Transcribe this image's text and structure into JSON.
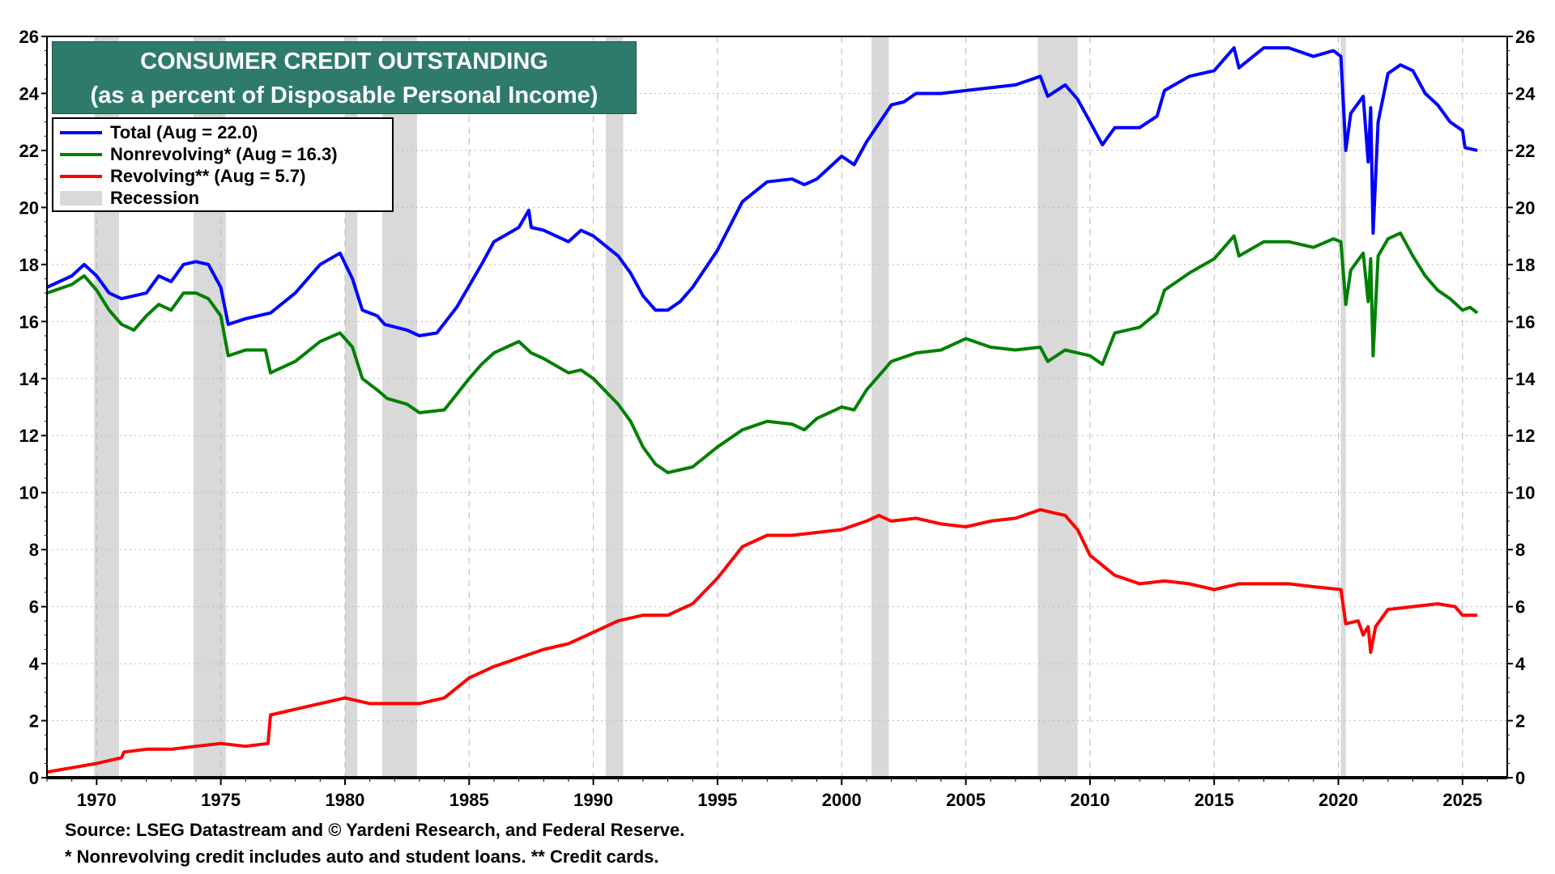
{
  "title_line1": "CONSUMER CREDIT OUTSTANDING",
  "title_line2": "(as a percent of Disposable Personal Income)",
  "legend": [
    {
      "label": "Total  (Aug = 22.0)",
      "color": "#0000ff"
    },
    {
      "label": "Nonrevolving* (Aug = 16.3)",
      "color": "#008000"
    },
    {
      "label": "Revolving** (Aug = 5.7)",
      "color": "#ff0000"
    },
    {
      "label": "Recession",
      "color": "#d9d9d9"
    }
  ],
  "footer": {
    "source": "Source: LSEG Datastream and © Yardeni Research, and Federal Reserve.",
    "note": "* Nonrevolving credit includes auto and student loans. ** Credit cards."
  },
  "chart_data": {
    "type": "line",
    "title": "CONSUMER CREDIT OUTSTANDING (as a percent of Disposable Personal Income)",
    "xlim": [
      1968,
      2026.8
    ],
    "ylim": [
      0,
      26
    ],
    "x_ticks": [
      1970,
      1975,
      1980,
      1985,
      1990,
      1995,
      2000,
      2005,
      2010,
      2015,
      2020,
      2025
    ],
    "y_ticks": [
      0,
      2,
      4,
      6,
      8,
      10,
      12,
      14,
      16,
      18,
      20,
      22,
      24,
      26
    ],
    "grid": true,
    "legend_position": "top-left",
    "recessions": [
      [
        1969.9,
        1970.9
      ],
      [
        1973.9,
        1975.2
      ],
      [
        1980.0,
        1980.5
      ],
      [
        1981.5,
        1982.9
      ],
      [
        1990.5,
        1991.2
      ],
      [
        2001.2,
        2001.9
      ],
      [
        2007.9,
        2009.5
      ],
      [
        2020.1,
        2020.3
      ]
    ],
    "series": [
      {
        "name": "Total",
        "color": "#0000ff",
        "points": [
          [
            1968,
            17.2
          ],
          [
            1969,
            17.6
          ],
          [
            1969.5,
            18.0
          ],
          [
            1970,
            17.6
          ],
          [
            1970.5,
            17.0
          ],
          [
            1971,
            16.8
          ],
          [
            1972,
            17.0
          ],
          [
            1972.5,
            17.6
          ],
          [
            1973,
            17.4
          ],
          [
            1973.5,
            18.0
          ],
          [
            1974,
            18.1
          ],
          [
            1974.5,
            18.0
          ],
          [
            1975,
            17.2
          ],
          [
            1975.3,
            15.9
          ],
          [
            1976,
            16.1
          ],
          [
            1977,
            16.3
          ],
          [
            1978,
            17.0
          ],
          [
            1979,
            18.0
          ],
          [
            1979.8,
            18.4
          ],
          [
            1980.3,
            17.5
          ],
          [
            1980.7,
            16.4
          ],
          [
            1981.3,
            16.2
          ],
          [
            1981.6,
            15.9
          ],
          [
            1982.5,
            15.7
          ],
          [
            1983,
            15.5
          ],
          [
            1983.7,
            15.6
          ],
          [
            1984.5,
            16.5
          ],
          [
            1985.5,
            18.0
          ],
          [
            1986,
            18.8
          ],
          [
            1987,
            19.3
          ],
          [
            1987.4,
            19.9
          ],
          [
            1987.5,
            19.3
          ],
          [
            1988,
            19.2
          ],
          [
            1989,
            18.8
          ],
          [
            1989.5,
            19.2
          ],
          [
            1990,
            19.0
          ],
          [
            1991,
            18.3
          ],
          [
            1991.5,
            17.7
          ],
          [
            1992,
            16.9
          ],
          [
            1992.5,
            16.4
          ],
          [
            1993,
            16.4
          ],
          [
            1993.5,
            16.7
          ],
          [
            1994,
            17.2
          ],
          [
            1995,
            18.5
          ],
          [
            1996,
            20.2
          ],
          [
            1997,
            20.9
          ],
          [
            1998,
            21.0
          ],
          [
            1998.5,
            20.8
          ],
          [
            1999,
            21.0
          ],
          [
            2000,
            21.8
          ],
          [
            2000.5,
            21.5
          ],
          [
            2001,
            22.3
          ],
          [
            2002,
            23.6
          ],
          [
            2002.5,
            23.7
          ],
          [
            2003,
            24.0
          ],
          [
            2004,
            24.0
          ],
          [
            2005,
            24.1
          ],
          [
            2006,
            24.2
          ],
          [
            2007,
            24.3
          ],
          [
            2008,
            24.6
          ],
          [
            2008.3,
            23.9
          ],
          [
            2009,
            24.3
          ],
          [
            2009.5,
            23.8
          ],
          [
            2010,
            23.0
          ],
          [
            2010.5,
            22.2
          ],
          [
            2011,
            22.8
          ],
          [
            2012,
            22.8
          ],
          [
            2012.7,
            23.2
          ],
          [
            2013,
            24.1
          ],
          [
            2014,
            24.6
          ],
          [
            2015,
            24.8
          ],
          [
            2015.8,
            25.6
          ],
          [
            2016,
            24.9
          ],
          [
            2017,
            25.6
          ],
          [
            2018,
            25.6
          ],
          [
            2019,
            25.3
          ],
          [
            2019.8,
            25.5
          ],
          [
            2020.1,
            25.3
          ],
          [
            2020.3,
            22.0
          ],
          [
            2020.5,
            23.3
          ],
          [
            2021,
            23.9
          ],
          [
            2021.2,
            21.6
          ],
          [
            2021.3,
            23.5
          ],
          [
            2021.4,
            19.1
          ],
          [
            2021.6,
            23.0
          ],
          [
            2022,
            24.7
          ],
          [
            2022.5,
            25.0
          ],
          [
            2023,
            24.8
          ],
          [
            2023.5,
            24.0
          ],
          [
            2024,
            23.6
          ],
          [
            2024.5,
            23.0
          ],
          [
            2025,
            22.7
          ],
          [
            2025.1,
            22.1
          ],
          [
            2025.6,
            22.0
          ]
        ]
      },
      {
        "name": "Nonrevolving",
        "color": "#008000",
        "points": [
          [
            1968,
            17.0
          ],
          [
            1969,
            17.3
          ],
          [
            1969.5,
            17.6
          ],
          [
            1970,
            17.1
          ],
          [
            1970.5,
            16.4
          ],
          [
            1971,
            15.9
          ],
          [
            1971.5,
            15.7
          ],
          [
            1972,
            16.2
          ],
          [
            1972.5,
            16.6
          ],
          [
            1973,
            16.4
          ],
          [
            1973.5,
            17.0
          ],
          [
            1974,
            17.0
          ],
          [
            1974.5,
            16.8
          ],
          [
            1975,
            16.2
          ],
          [
            1975.3,
            14.8
          ],
          [
            1976,
            15.0
          ],
          [
            1976.8,
            15.0
          ],
          [
            1977,
            14.2
          ],
          [
            1978,
            14.6
          ],
          [
            1979,
            15.3
          ],
          [
            1979.8,
            15.6
          ],
          [
            1980.3,
            15.1
          ],
          [
            1980.7,
            14.0
          ],
          [
            1981.3,
            13.6
          ],
          [
            1981.7,
            13.3
          ],
          [
            1982.5,
            13.1
          ],
          [
            1983,
            12.8
          ],
          [
            1984,
            12.9
          ],
          [
            1985,
            14.0
          ],
          [
            1985.5,
            14.5
          ],
          [
            1986,
            14.9
          ],
          [
            1987,
            15.3
          ],
          [
            1987.5,
            14.9
          ],
          [
            1988,
            14.7
          ],
          [
            1989,
            14.2
          ],
          [
            1989.5,
            14.3
          ],
          [
            1990,
            14.0
          ],
          [
            1991,
            13.1
          ],
          [
            1991.5,
            12.5
          ],
          [
            1992,
            11.6
          ],
          [
            1992.5,
            11.0
          ],
          [
            1993,
            10.7
          ],
          [
            1994,
            10.9
          ],
          [
            1995,
            11.6
          ],
          [
            1996,
            12.2
          ],
          [
            1997,
            12.5
          ],
          [
            1998,
            12.4
          ],
          [
            1998.5,
            12.2
          ],
          [
            1999,
            12.6
          ],
          [
            2000,
            13.0
          ],
          [
            2000.5,
            12.9
          ],
          [
            2001,
            13.6
          ],
          [
            2002,
            14.6
          ],
          [
            2003,
            14.9
          ],
          [
            2004,
            15.0
          ],
          [
            2005,
            15.4
          ],
          [
            2006,
            15.1
          ],
          [
            2007,
            15.0
          ],
          [
            2008,
            15.1
          ],
          [
            2008.3,
            14.6
          ],
          [
            2009,
            15.0
          ],
          [
            2009.5,
            14.9
          ],
          [
            2010,
            14.8
          ],
          [
            2010.5,
            14.5
          ],
          [
            2011,
            15.6
          ],
          [
            2012,
            15.8
          ],
          [
            2012.7,
            16.3
          ],
          [
            2013,
            17.1
          ],
          [
            2014,
            17.7
          ],
          [
            2015,
            18.2
          ],
          [
            2015.8,
            19.0
          ],
          [
            2016,
            18.3
          ],
          [
            2017,
            18.8
          ],
          [
            2018,
            18.8
          ],
          [
            2019,
            18.6
          ],
          [
            2019.8,
            18.9
          ],
          [
            2020.1,
            18.8
          ],
          [
            2020.3,
            16.6
          ],
          [
            2020.5,
            17.8
          ],
          [
            2021,
            18.4
          ],
          [
            2021.2,
            16.7
          ],
          [
            2021.3,
            18.2
          ],
          [
            2021.4,
            14.8
          ],
          [
            2021.6,
            18.3
          ],
          [
            2022,
            18.9
          ],
          [
            2022.5,
            19.1
          ],
          [
            2023,
            18.3
          ],
          [
            2023.5,
            17.6
          ],
          [
            2024,
            17.1
          ],
          [
            2024.5,
            16.8
          ],
          [
            2025,
            16.4
          ],
          [
            2025.3,
            16.5
          ],
          [
            2025.6,
            16.3
          ]
        ]
      },
      {
        "name": "Revolving",
        "color": "#ff0000",
        "points": [
          [
            1968,
            0.2
          ],
          [
            1969,
            0.35
          ],
          [
            1970,
            0.5
          ],
          [
            1971,
            0.7
          ],
          [
            1971.1,
            0.9
          ],
          [
            1972,
            1.0
          ],
          [
            1973,
            1.0
          ],
          [
            1974,
            1.1
          ],
          [
            1975,
            1.2
          ],
          [
            1976,
            1.1
          ],
          [
            1976.9,
            1.2
          ],
          [
            1977,
            2.2
          ],
          [
            1978,
            2.4
          ],
          [
            1979,
            2.6
          ],
          [
            1980,
            2.8
          ],
          [
            1981,
            2.6
          ],
          [
            1982,
            2.6
          ],
          [
            1983,
            2.6
          ],
          [
            1984,
            2.8
          ],
          [
            1985,
            3.5
          ],
          [
            1986,
            3.9
          ],
          [
            1987,
            4.2
          ],
          [
            1988,
            4.5
          ],
          [
            1989,
            4.7
          ],
          [
            1990,
            5.1
          ],
          [
            1991,
            5.5
          ],
          [
            1992,
            5.7
          ],
          [
            1993,
            5.7
          ],
          [
            1994,
            6.1
          ],
          [
            1995,
            7.0
          ],
          [
            1996,
            8.1
          ],
          [
            1997,
            8.5
          ],
          [
            1998,
            8.5
          ],
          [
            1999,
            8.6
          ],
          [
            2000,
            8.7
          ],
          [
            2001,
            9.0
          ],
          [
            2001.5,
            9.2
          ],
          [
            2002,
            9.0
          ],
          [
            2003,
            9.1
          ],
          [
            2004,
            8.9
          ],
          [
            2005,
            8.8
          ],
          [
            2006,
            9.0
          ],
          [
            2007,
            9.1
          ],
          [
            2008,
            9.4
          ],
          [
            2008.5,
            9.3
          ],
          [
            2009,
            9.2
          ],
          [
            2009.5,
            8.7
          ],
          [
            2010,
            7.8
          ],
          [
            2011,
            7.1
          ],
          [
            2012,
            6.8
          ],
          [
            2013,
            6.9
          ],
          [
            2014,
            6.8
          ],
          [
            2015,
            6.6
          ],
          [
            2016,
            6.8
          ],
          [
            2017,
            6.8
          ],
          [
            2018,
            6.8
          ],
          [
            2019,
            6.7
          ],
          [
            2020.1,
            6.6
          ],
          [
            2020.3,
            5.4
          ],
          [
            2020.8,
            5.5
          ],
          [
            2021,
            5.0
          ],
          [
            2021.2,
            5.3
          ],
          [
            2021.3,
            4.4
          ],
          [
            2021.5,
            5.3
          ],
          [
            2022,
            5.9
          ],
          [
            2023,
            6.0
          ],
          [
            2024,
            6.1
          ],
          [
            2024.7,
            6.0
          ],
          [
            2025,
            5.7
          ],
          [
            2025.6,
            5.7
          ]
        ]
      }
    ]
  }
}
